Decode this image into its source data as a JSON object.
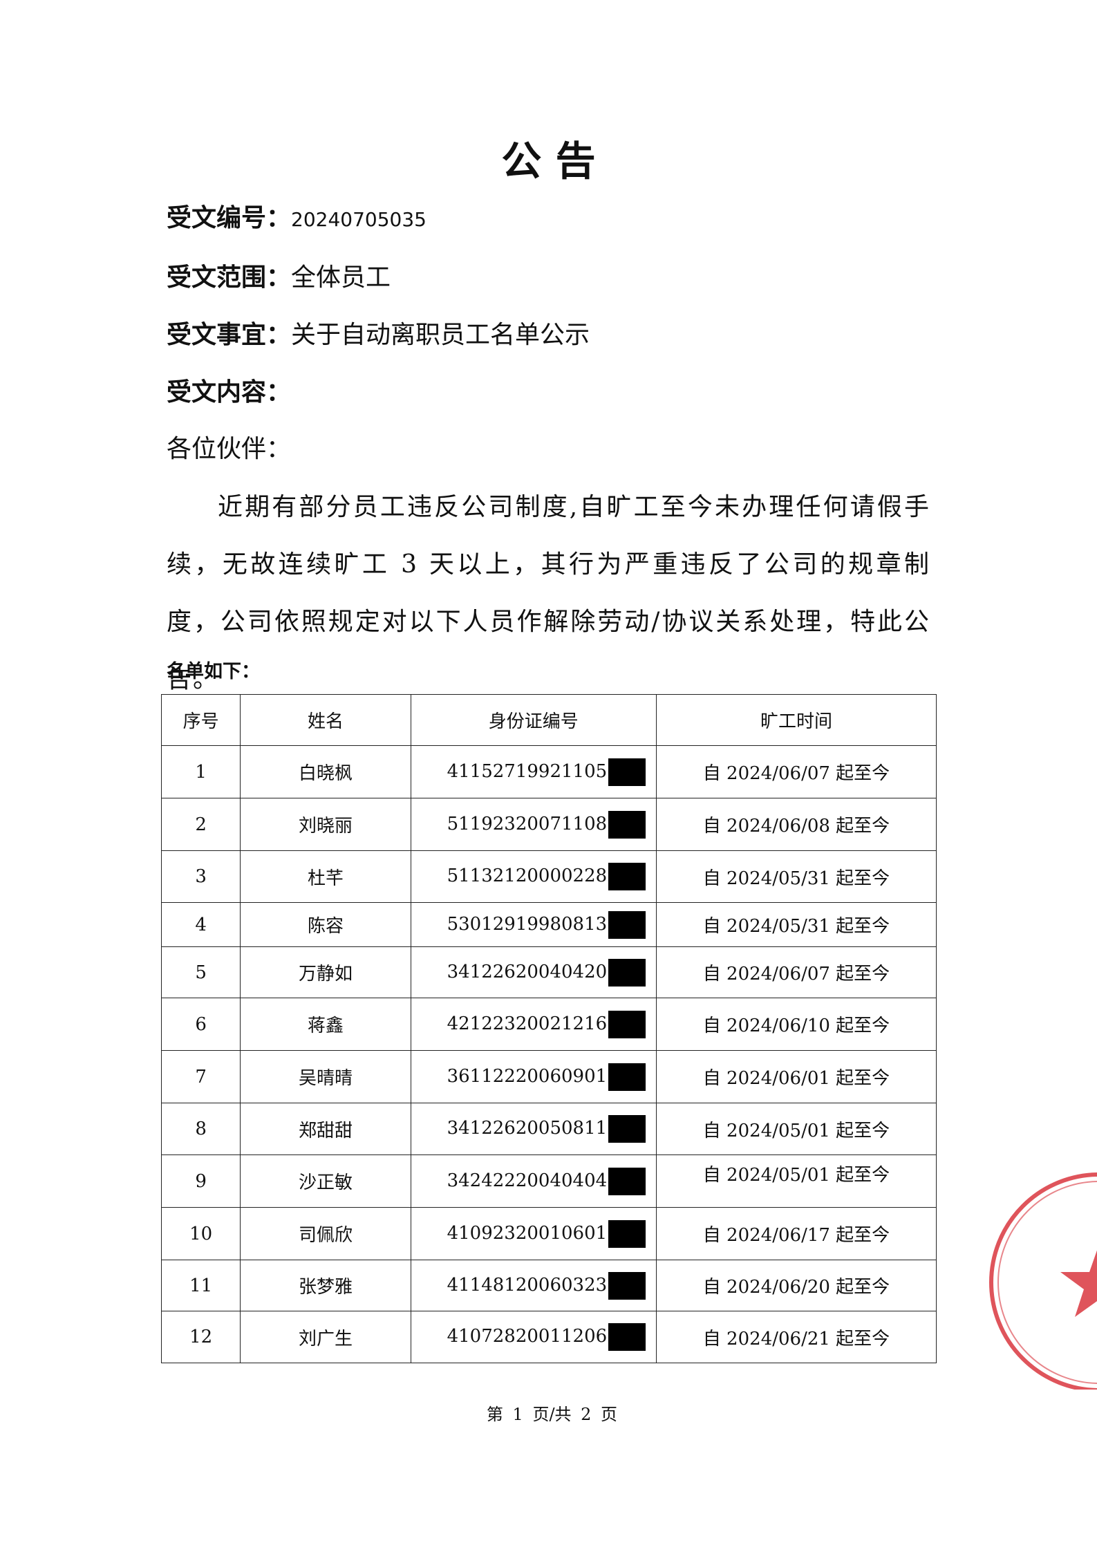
{
  "header": {
    "title": "公 告",
    "fields": [
      {
        "label": "受文编号：",
        "value": "20240705035"
      },
      {
        "label": "受文范围：",
        "value": "全体员工"
      },
      {
        "label": "受文事宜：",
        "value": "关于自动离职员工名单公示"
      },
      {
        "label": "受文内容："
      }
    ]
  },
  "greeting": "各位伙伴：",
  "body": "近期有部分员工违反公司制度,自旷工至今未办理任何请假手续，无故连续旷工 3 天以上，其行为严重违反了公司的规章制度，公司依照规定对以下人员作解除劳动/协议关系处理，特此公告。",
  "list_heading": "名单如下：",
  "table": {
    "columns": [
      "序号",
      "姓名",
      "身份证编号",
      "旷工时间"
    ],
    "rows": [
      [
        "1",
        "白晓枫",
        "41152719921105",
        "自 2024/06/07 起至今"
      ],
      [
        "2",
        "刘晓丽",
        "51192320071108",
        "自 2024/06/08 起至今"
      ],
      [
        "3",
        "杜芊",
        "51132120000228",
        "自 2024/05/31 起至今"
      ],
      [
        "4",
        "陈容",
        "53012919980813",
        "自 2024/05/31 起至今"
      ],
      [
        "5",
        "万静如",
        "34122620040420",
        "自 2024/06/07 起至今"
      ],
      [
        "6",
        "蒋鑫",
        "42122320021216",
        "自 2024/06/10 起至今"
      ],
      [
        "7",
        "吴晴晴",
        "36112220060901",
        "自 2024/06/01 起至今"
      ],
      [
        "8",
        "郑甜甜",
        "34122620050811",
        "自 2024/05/01 起至今"
      ],
      [
        "9",
        "沙正敏",
        "34242220040404",
        "自 2024/05/01 起至今"
      ],
      [
        "10",
        "司佩欣",
        "41092320010601",
        "自 2024/06/17 起至今"
      ],
      [
        "11",
        "张梦雅",
        "41148120060323",
        "自 2024/06/20 起至今"
      ],
      [
        "12",
        "刘广生",
        "41072820011206",
        "自 2024/06/21 起至今"
      ]
    ]
  },
  "footer": "第 1 页/共 2 页"
}
